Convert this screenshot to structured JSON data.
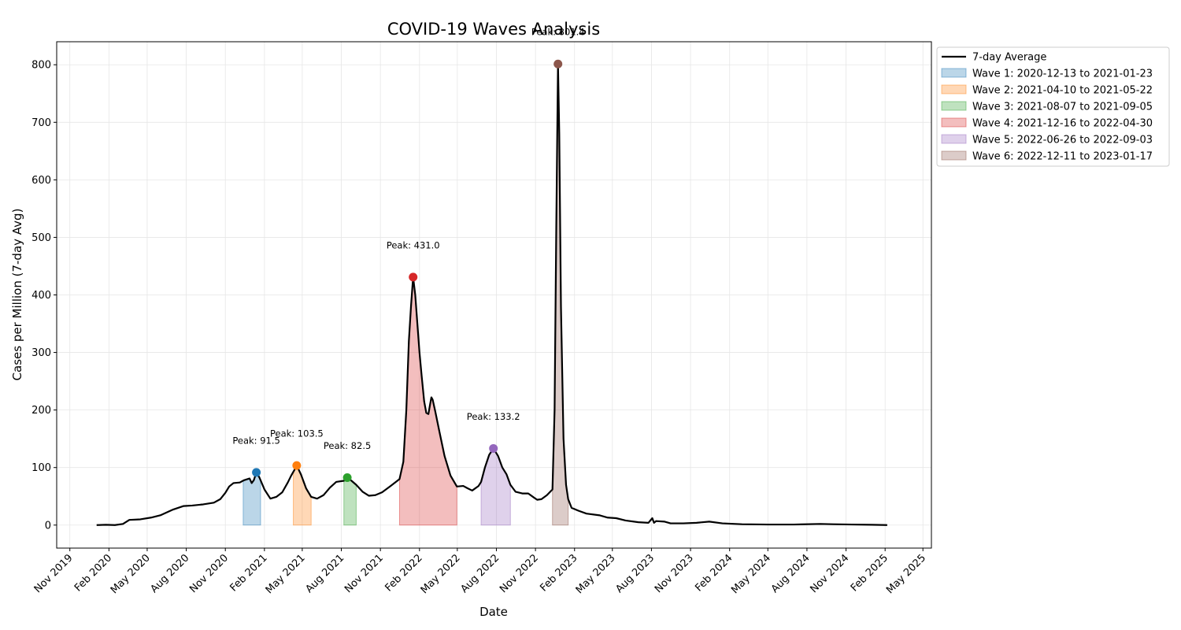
{
  "chart_data": {
    "type": "line",
    "title": "COVID-19 Waves Analysis",
    "xlabel": "Date",
    "ylabel": "Cases per Million (7-day Avg)",
    "xlim": [
      "2019-10-01",
      "2025-05-21"
    ],
    "ylim": [
      -40,
      840
    ],
    "y_ticks": [
      0,
      100,
      200,
      300,
      400,
      500,
      600,
      700,
      800
    ],
    "x_ticks": [
      {
        "date": "2019-11-01",
        "label": "Nov 2019"
      },
      {
        "date": "2020-02-01",
        "label": "Feb 2020"
      },
      {
        "date": "2020-05-01",
        "label": "May 2020"
      },
      {
        "date": "2020-08-01",
        "label": "Aug 2020"
      },
      {
        "date": "2020-11-01",
        "label": "Nov 2020"
      },
      {
        "date": "2021-02-01",
        "label": "Feb 2021"
      },
      {
        "date": "2021-05-01",
        "label": "May 2021"
      },
      {
        "date": "2021-08-01",
        "label": "Aug 2021"
      },
      {
        "date": "2021-11-01",
        "label": "Nov 2021"
      },
      {
        "date": "2022-02-01",
        "label": "Feb 2022"
      },
      {
        "date": "2022-05-01",
        "label": "May 2022"
      },
      {
        "date": "2022-08-01",
        "label": "Aug 2022"
      },
      {
        "date": "2022-11-01",
        "label": "Nov 2022"
      },
      {
        "date": "2023-02-01",
        "label": "Feb 2023"
      },
      {
        "date": "2023-05-01",
        "label": "May 2023"
      },
      {
        "date": "2023-08-01",
        "label": "Aug 2023"
      },
      {
        "date": "2023-11-01",
        "label": "Nov 2023"
      },
      {
        "date": "2024-02-01",
        "label": "Feb 2024"
      },
      {
        "date": "2024-05-01",
        "label": "May 2024"
      },
      {
        "date": "2024-08-01",
        "label": "Aug 2024"
      },
      {
        "date": "2024-11-01",
        "label": "Nov 2024"
      },
      {
        "date": "2025-02-01",
        "label": "Feb 2025"
      },
      {
        "date": "2025-05-01",
        "label": "May 2025"
      }
    ],
    "grid": true,
    "legend_position": "outside-top-right",
    "series": [
      {
        "name": "7-day Average",
        "color": "#000000",
        "points": [
          [
            "2020-01-03",
            0
          ],
          [
            "2020-01-25",
            0.5
          ],
          [
            "2020-02-15",
            0
          ],
          [
            "2020-03-05",
            2
          ],
          [
            "2020-03-20",
            9
          ],
          [
            "2020-04-15",
            10
          ],
          [
            "2020-05-10",
            13
          ],
          [
            "2020-06-01",
            17
          ],
          [
            "2020-07-01",
            27
          ],
          [
            "2020-07-25",
            33
          ],
          [
            "2020-08-15",
            34
          ],
          [
            "2020-09-10",
            36
          ],
          [
            "2020-10-05",
            39
          ],
          [
            "2020-10-20",
            45
          ],
          [
            "2020-11-01",
            56
          ],
          [
            "2020-11-10",
            67
          ],
          [
            "2020-11-20",
            73
          ],
          [
            "2020-12-05",
            74
          ],
          [
            "2020-12-15",
            78
          ],
          [
            "2020-12-28",
            81
          ],
          [
            "2021-01-02",
            73
          ],
          [
            "2021-01-07",
            78
          ],
          [
            "2021-01-13",
            91.5
          ],
          [
            "2021-01-20",
            83
          ],
          [
            "2021-02-01",
            62
          ],
          [
            "2021-02-15",
            46
          ],
          [
            "2021-03-01",
            49
          ],
          [
            "2021-03-15",
            57
          ],
          [
            "2021-03-28",
            74
          ],
          [
            "2021-04-05",
            86
          ],
          [
            "2021-04-12",
            95
          ],
          [
            "2021-04-18",
            103.5
          ],
          [
            "2021-04-28",
            88
          ],
          [
            "2021-05-10",
            64
          ],
          [
            "2021-05-22",
            49
          ],
          [
            "2021-06-05",
            46
          ],
          [
            "2021-06-20",
            52
          ],
          [
            "2021-07-05",
            65
          ],
          [
            "2021-07-20",
            75
          ],
          [
            "2021-08-07",
            77
          ],
          [
            "2021-08-15",
            82.5
          ],
          [
            "2021-08-25",
            77
          ],
          [
            "2021-09-05",
            70
          ],
          [
            "2021-09-20",
            58
          ],
          [
            "2021-10-05",
            51
          ],
          [
            "2021-10-20",
            52
          ],
          [
            "2021-11-05",
            57
          ],
          [
            "2021-11-25",
            68
          ],
          [
            "2021-12-16",
            80
          ],
          [
            "2021-12-25",
            110
          ],
          [
            "2022-01-01",
            200
          ],
          [
            "2022-01-07",
            320
          ],
          [
            "2022-01-12",
            380
          ],
          [
            "2022-01-17",
            431
          ],
          [
            "2022-01-22",
            400
          ],
          [
            "2022-01-27",
            350
          ],
          [
            "2022-02-01",
            300
          ],
          [
            "2022-02-06",
            260
          ],
          [
            "2022-02-12",
            215
          ],
          [
            "2022-02-17",
            195
          ],
          [
            "2022-02-22",
            193
          ],
          [
            "2022-02-26",
            210
          ],
          [
            "2022-03-01",
            222
          ],
          [
            "2022-03-04",
            218
          ],
          [
            "2022-03-10",
            198
          ],
          [
            "2022-03-20",
            162
          ],
          [
            "2022-04-01",
            120
          ],
          [
            "2022-04-15",
            86
          ],
          [
            "2022-04-30",
            67
          ],
          [
            "2022-05-15",
            68
          ],
          [
            "2022-05-25",
            64
          ],
          [
            "2022-06-05",
            60
          ],
          [
            "2022-06-20",
            68
          ],
          [
            "2022-06-26",
            75
          ],
          [
            "2022-07-05",
            100
          ],
          [
            "2022-07-15",
            122
          ],
          [
            "2022-07-25",
            133.2
          ],
          [
            "2022-08-05",
            120
          ],
          [
            "2022-08-15",
            100
          ],
          [
            "2022-08-25",
            88
          ],
          [
            "2022-09-03",
            70
          ],
          [
            "2022-09-15",
            58
          ],
          [
            "2022-10-01",
            55
          ],
          [
            "2022-10-15",
            55
          ],
          [
            "2022-10-28",
            48
          ],
          [
            "2022-11-05",
            44
          ],
          [
            "2022-11-15",
            45
          ],
          [
            "2022-11-28",
            52
          ],
          [
            "2022-12-11",
            62
          ],
          [
            "2022-12-16",
            200
          ],
          [
            "2022-12-20",
            520
          ],
          [
            "2022-12-24",
            801.4
          ],
          [
            "2022-12-27",
            680
          ],
          [
            "2022-12-31",
            380
          ],
          [
            "2023-01-06",
            150
          ],
          [
            "2023-01-12",
            70
          ],
          [
            "2023-01-17",
            45
          ],
          [
            "2023-01-25",
            30
          ],
          [
            "2023-02-10",
            25
          ],
          [
            "2023-03-01",
            20
          ],
          [
            "2023-04-01",
            17
          ],
          [
            "2023-04-20",
            13
          ],
          [
            "2023-05-10",
            12
          ],
          [
            "2023-06-01",
            8
          ],
          [
            "2023-07-01",
            5
          ],
          [
            "2023-07-25",
            4
          ],
          [
            "2023-08-03",
            12
          ],
          [
            "2023-08-07",
            4
          ],
          [
            "2023-08-12",
            7
          ],
          [
            "2023-09-01",
            6
          ],
          [
            "2023-09-15",
            3
          ],
          [
            "2023-10-15",
            3
          ],
          [
            "2023-11-15",
            4
          ],
          [
            "2023-12-15",
            6
          ],
          [
            "2024-01-15",
            3
          ],
          [
            "2024-03-01",
            1.5
          ],
          [
            "2024-05-01",
            1
          ],
          [
            "2024-07-01",
            1
          ],
          [
            "2024-09-01",
            2
          ],
          [
            "2024-10-01",
            1.5
          ],
          [
            "2024-11-15",
            1
          ],
          [
            "2025-01-01",
            0.5
          ],
          [
            "2025-02-06",
            0
          ]
        ]
      }
    ],
    "waves": [
      {
        "label": "Wave 1: 2020-12-13 to 2021-01-23",
        "start": "2020-12-13",
        "end": "2021-01-23",
        "color": "#1f77b4",
        "peak_date": "2021-01-13",
        "peak_value": 91.5,
        "peak_label": "Peak: 91.5"
      },
      {
        "label": "Wave 2: 2021-04-10 to 2021-05-22",
        "start": "2021-04-10",
        "end": "2021-05-22",
        "color": "#ff7f0e",
        "peak_date": "2021-04-18",
        "peak_value": 103.5,
        "peak_label": "Peak: 103.5"
      },
      {
        "label": "Wave 3: 2021-08-07 to 2021-09-05",
        "start": "2021-08-07",
        "end": "2021-09-05",
        "color": "#2ca02c",
        "peak_date": "2021-08-15",
        "peak_value": 82.5,
        "peak_label": "Peak: 82.5"
      },
      {
        "label": "Wave 4: 2021-12-16 to 2022-04-30",
        "start": "2021-12-16",
        "end": "2022-04-30",
        "color": "#d62728",
        "peak_date": "2022-01-17",
        "peak_value": 431.0,
        "peak_label": "Peak: 431.0"
      },
      {
        "label": "Wave 5: 2022-06-26 to 2022-09-03",
        "start": "2022-06-26",
        "end": "2022-09-03",
        "color": "#9467bd",
        "peak_date": "2022-07-25",
        "peak_value": 133.2,
        "peak_label": "Peak: 133.2"
      },
      {
        "label": "Wave 6: 2022-12-11 to 2023-01-17",
        "start": "2022-12-11",
        "end": "2023-01-17",
        "color": "#8c564b",
        "peak_date": "2022-12-24",
        "peak_value": 801.4,
        "peak_label": "Peak: 801.4"
      }
    ]
  }
}
